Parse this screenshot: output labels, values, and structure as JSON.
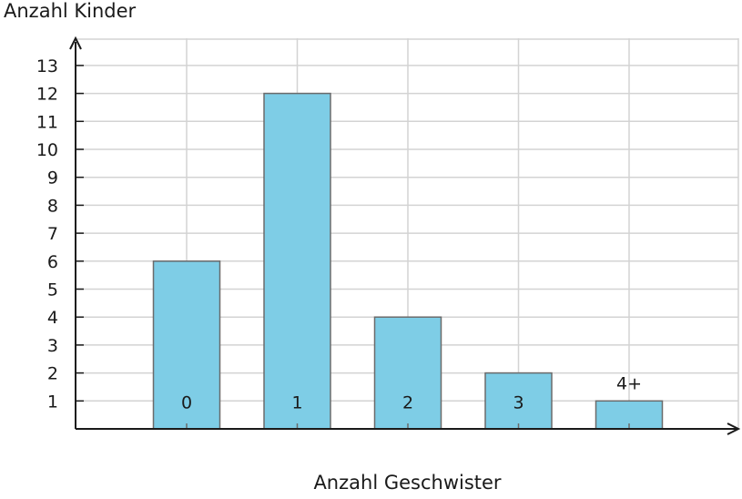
{
  "chart_data": {
    "type": "bar",
    "xlabel": "Anzahl Geschwister",
    "ylabel": "Anzahl Kinder",
    "categories": [
      "0",
      "1",
      "2",
      "3",
      "4+"
    ],
    "values": [
      6,
      12,
      4,
      2,
      1
    ],
    "ylim": [
      0,
      13
    ],
    "yticks": [
      1,
      2,
      3,
      4,
      5,
      6,
      7,
      8,
      9,
      10,
      11,
      12,
      13
    ],
    "grid": true,
    "bar_color": "#7ecde6",
    "bar_edge_color": "#6b6b6b",
    "grid_color": "#d3d3d3",
    "axis_color": "#1a1a1a"
  }
}
